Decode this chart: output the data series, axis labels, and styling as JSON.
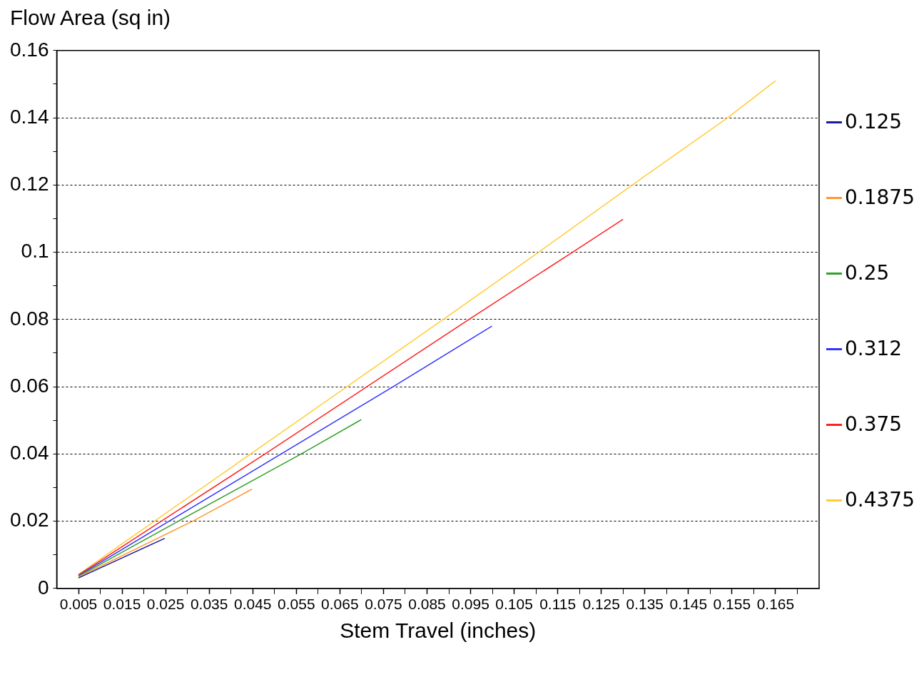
{
  "chart_data": {
    "type": "line",
    "ylabel": "Flow Area (sq in)",
    "xlabel": "Stem Travel (inches)",
    "xlim": [
      0,
      0.175
    ],
    "xticks": [
      0.005,
      {
        "value": 0.01,
        "label": null
      },
      0.015,
      {
        "value": 0.02,
        "label": null
      },
      0.025,
      {
        "value": 0.03,
        "label": null
      },
      0.035,
      {
        "value": 0.04,
        "label": null
      },
      0.045,
      {
        "value": 0.05,
        "label": null
      },
      0.055,
      {
        "value": 0.06,
        "label": null
      },
      0.065,
      {
        "value": 0.07,
        "label": null
      },
      0.075,
      {
        "value": 0.08,
        "label": null
      },
      0.085,
      {
        "value": 0.09,
        "label": null
      },
      0.095,
      {
        "value": 0.1,
        "label": null
      },
      0.105,
      {
        "value": 0.11,
        "label": null
      },
      0.115,
      {
        "value": 0.12,
        "label": null
      },
      0.125,
      {
        "value": 0.13,
        "label": null
      },
      0.135,
      {
        "value": 0.14,
        "label": null
      },
      0.145,
      {
        "value": 0.15,
        "label": null
      },
      0.155,
      {
        "value": 0.16,
        "label": null
      },
      0.165,
      {
        "value": 0.17,
        "label": null
      }
    ],
    "ylim": [
      0,
      0.16
    ],
    "yticks": [
      0,
      {
        "value": 0.01,
        "label": null
      },
      0.02,
      {
        "value": 0.03,
        "label": null
      },
      0.04,
      {
        "value": 0.05,
        "label": null
      },
      0.06,
      {
        "value": 0.07,
        "label": null
      },
      0.08,
      {
        "value": 0.09,
        "label": null
      },
      0.1,
      {
        "value": 0.11,
        "label": null
      },
      0.12,
      {
        "value": 0.13,
        "label": null
      },
      0.14,
      {
        "value": 0.15,
        "label": null
      },
      0.16
    ],
    "grid": "y",
    "legend": "right",
    "marker": "none",
    "line_style": "solid",
    "series": [
      {
        "name": "0.125",
        "color": "#1a1aa0",
        "x": [
          0.005,
          0.0248
        ],
        "values": [
          0.0031,
          0.0149
        ]
      },
      {
        "name": "0.1875",
        "color": "#ff9933",
        "x": [
          0.005,
          0.0312,
          0.0448
        ],
        "values": [
          0.0034,
          0.02,
          0.0295
        ]
      },
      {
        "name": "0.25",
        "color": "#33a02c",
        "x": [
          0.005,
          0.0279,
          0.0561,
          0.0699
        ],
        "values": [
          0.0036,
          0.02,
          0.04,
          0.0502
        ]
      },
      {
        "name": "0.312",
        "color": "#3333ff",
        "x": [
          0.005,
          0.0515,
          0.0772,
          0.0999
        ],
        "values": [
          0.0038,
          0.04,
          0.06,
          0.078
        ]
      },
      {
        "name": "0.375",
        "color": "#ff2020",
        "x": [
          0.005,
          0.0478,
          0.0946,
          0.1184,
          0.13
        ],
        "values": [
          0.004,
          0.04,
          0.08,
          0.1,
          0.1098
        ]
      },
      {
        "name": "0.4375",
        "color": "#ffcc33",
        "x": [
          0.005,
          0.0445,
          0.0887,
          0.1106,
          0.1321,
          0.154,
          0.165
        ],
        "values": [
          0.0042,
          0.04,
          0.08,
          0.1,
          0.12,
          0.14,
          0.151
        ]
      }
    ]
  }
}
